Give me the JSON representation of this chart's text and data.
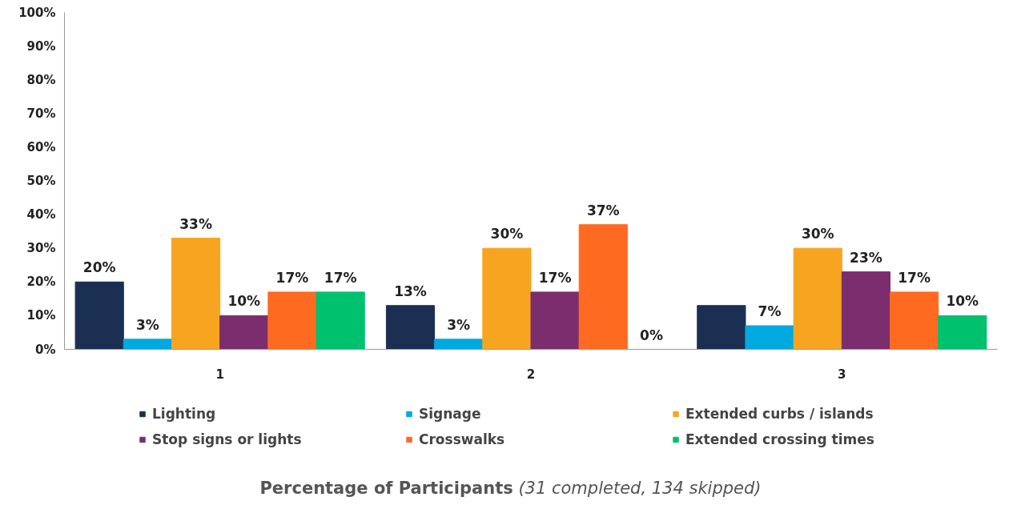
{
  "chart_data": {
    "type": "bar",
    "categories": [
      "1",
      "2",
      "3"
    ],
    "series": [
      {
        "name": "Lighting",
        "color": "#1b2f52",
        "values": [
          20,
          13,
          13
        ],
        "value_labels": [
          "20%",
          "13%",
          null
        ]
      },
      {
        "name": "Signage",
        "color": "#00a9e0",
        "values": [
          3,
          3,
          7
        ],
        "value_labels": [
          "3%",
          "3%",
          "7%"
        ]
      },
      {
        "name": "Extended curbs / islands",
        "color": "#f7a521",
        "values": [
          33,
          30,
          30
        ],
        "value_labels": [
          "33%",
          "30%",
          "30%"
        ]
      },
      {
        "name": "Stop signs or lights",
        "color": "#7b2d6e",
        "values": [
          10,
          17,
          23
        ],
        "value_labels": [
          "10%",
          "17%",
          "23%"
        ]
      },
      {
        "name": "Crosswalks",
        "color": "#ff6a21",
        "values": [
          17,
          37,
          17
        ],
        "value_labels": [
          "17%",
          "37%",
          "17%"
        ]
      },
      {
        "name": "Extended crossing times",
        "color": "#00c16e",
        "values": [
          17,
          0,
          10
        ],
        "value_labels": [
          "17%",
          "0%",
          "10%"
        ]
      }
    ],
    "ylim": [
      0,
      100
    ],
    "yticks": [
      {
        "value": 0,
        "label": "0%"
      },
      {
        "value": 10,
        "label": "10%"
      },
      {
        "value": 20,
        "label": "20%"
      },
      {
        "value": 30,
        "label": "30%"
      },
      {
        "value": 40,
        "label": "40%"
      },
      {
        "value": 50,
        "label": "50%"
      },
      {
        "value": 60,
        "label": "60%"
      },
      {
        "value": 70,
        "label": "70%"
      },
      {
        "value": 80,
        "label": "80%"
      },
      {
        "value": 90,
        "label": "90%"
      },
      {
        "value": 100,
        "label": "100%"
      }
    ],
    "grid": false,
    "legend": "bottom",
    "annotations": [
      "Percentage of Participants",
      "(31 completed, 134 skipped)"
    ]
  }
}
